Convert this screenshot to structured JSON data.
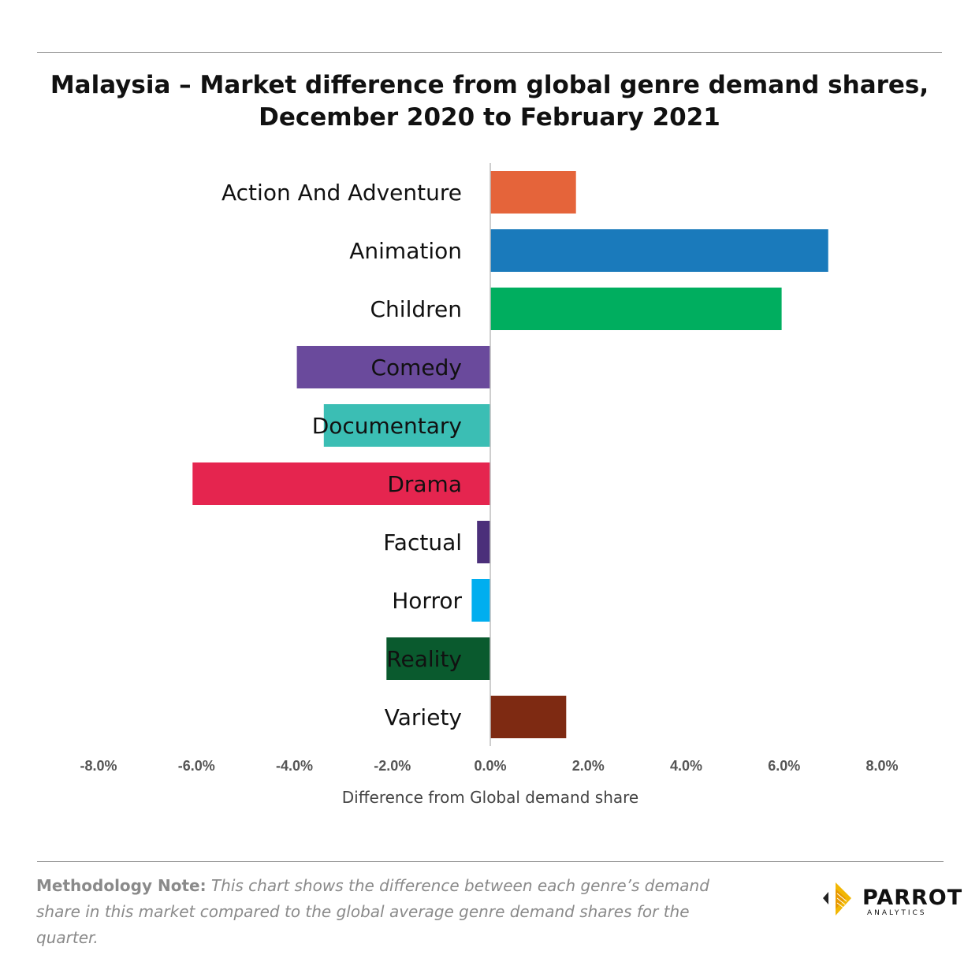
{
  "title_lines": [
    "Malaysia – Market difference from global genre demand shares,",
    "December 2020 to February 2021"
  ],
  "chart_data": {
    "type": "bar",
    "orientation": "horizontal",
    "categories": [
      "Action And Adventure",
      "Animation",
      "Children",
      "Comedy",
      "Documentary",
      "Drama",
      "Factual",
      "Horror",
      "Reality",
      "Variety"
    ],
    "values": [
      0.0175,
      0.069,
      0.0595,
      -0.0395,
      -0.034,
      -0.0608,
      -0.0027,
      -0.0038,
      -0.0212,
      0.0155
    ],
    "colors": [
      "#E5643A",
      "#1A7ABB",
      "#00AE5F",
      "#6A4A9C",
      "#3BBEB4",
      "#E5254F",
      "#4B2F7A",
      "#00AEEF",
      "#0A5A2E",
      "#7E2A12"
    ],
    "xlim": [
      -0.08,
      0.08
    ],
    "xticks": [
      -0.08,
      -0.06,
      -0.04,
      -0.02,
      0,
      0.02,
      0.04,
      0.06,
      0.08
    ],
    "xtick_labels": [
      "-8.0%",
      "-6.0%",
      "-4.0%",
      "-2.0%",
      "0.0%",
      "2.0%",
      "4.0%",
      "6.0%",
      "8.0%"
    ],
    "xlabel": "Difference from Global demand share",
    "ylabel": "",
    "legend": "none",
    "grid": false
  },
  "note": {
    "lead": "Methodology Note:",
    "body": "This chart shows the difference between each genre’s demand share in this market compared to the global average genre demand shares for the quarter."
  },
  "logo": {
    "word": "PARROT",
    "sub": "ANALYTICS"
  }
}
